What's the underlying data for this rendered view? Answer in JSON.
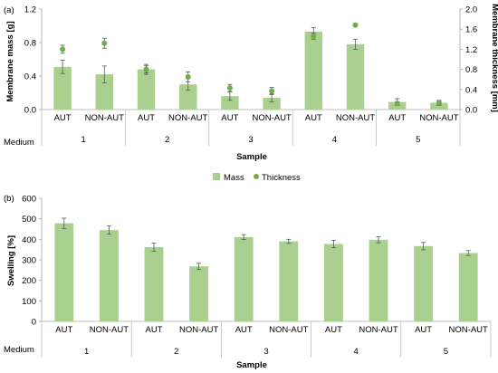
{
  "colors": {
    "bar": "#a9d08e",
    "bar_stroke": "#a9d08e",
    "point": "#70ad47",
    "error": "#595959",
    "axis": "#a6a6a6",
    "divider": "#bfbfbf"
  },
  "legend": {
    "mass": "Mass",
    "thickness": "Thickness",
    "position": "between panels, center"
  },
  "chart_data": [
    {
      "panel": "(a)",
      "type": "bar",
      "secondary_type": "scatter",
      "group_title": "Medium",
      "groups": [
        "1",
        "2",
        "3",
        "4",
        "5"
      ],
      "categories": [
        "AUT",
        "NON-AUT",
        "AUT",
        "NON-AUT",
        "AUT",
        "NON-AUT",
        "AUT",
        "NON-AUT",
        "AUT",
        "NON-AUT"
      ],
      "xlabel": "Sample",
      "ylabel": "Membrane mass [g]",
      "ylim": [
        0,
        1.2
      ],
      "yticks": [
        "0.0",
        "0.4",
        "0.8",
        "1.2"
      ],
      "y2label": "Membrane thickness [mm]",
      "y2lim": [
        0,
        2.0
      ],
      "y2ticks": [
        "0.0",
        "0.4",
        "0.8",
        "1.2",
        "1.6",
        "2.0"
      ],
      "series": [
        {
          "name": "Mass",
          "axis": "left",
          "values": [
            0.51,
            0.42,
            0.48,
            0.3,
            0.16,
            0.14,
            0.93,
            0.78,
            0.09,
            0.08
          ],
          "errors": [
            0.08,
            0.1,
            0.06,
            0.07,
            0.05,
            0.05,
            0.05,
            0.06,
            0.04,
            0.03
          ]
        },
        {
          "name": "Thickness",
          "axis": "right",
          "values": [
            1.2,
            1.32,
            0.8,
            0.65,
            0.43,
            0.37,
            1.46,
            1.68,
            0.12,
            0.13
          ],
          "errors": [
            0.08,
            0.1,
            0.07,
            0.1,
            0.07,
            0.07,
            0.06,
            0.0,
            0.04,
            0.04
          ]
        }
      ],
      "grid": false
    },
    {
      "panel": "(b)",
      "type": "bar",
      "group_title": "Medium",
      "groups": [
        "1",
        "2",
        "3",
        "4",
        "5"
      ],
      "categories": [
        "AUT",
        "NON-AUT",
        "AUT",
        "NON-AUT",
        "AUT",
        "NON-AUT",
        "AUT",
        "NON-AUT",
        "AUT",
        "NON-AUT"
      ],
      "xlabel": "Sample",
      "ylabel": "Swelling [%]",
      "ylim": [
        0,
        600
      ],
      "yticks": [
        "0",
        "100",
        "200",
        "300",
        "400",
        "500",
        "600"
      ],
      "series": [
        {
          "name": "Swelling",
          "values": [
            478,
            445,
            362,
            268,
            411,
            390,
            377,
            398,
            367,
            333
          ],
          "errors": [
            25,
            20,
            20,
            15,
            12,
            10,
            18,
            15,
            18,
            12
          ]
        }
      ],
      "grid": false
    }
  ]
}
